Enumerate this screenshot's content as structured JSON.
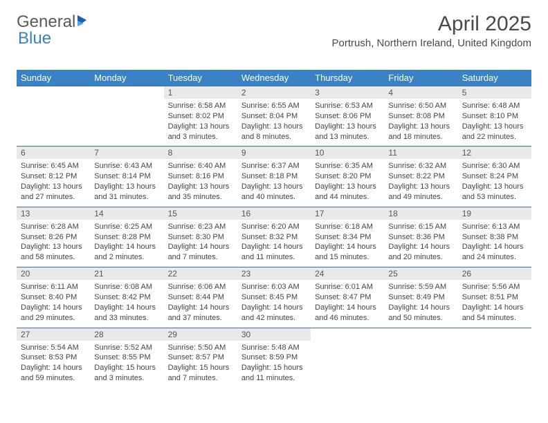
{
  "logo": {
    "text1": "General",
    "text2": "Blue"
  },
  "title": "April 2025",
  "location": "Portrush, Northern Ireland, United Kingdom",
  "header_bg": "#3b82c4",
  "header_fg": "#ffffff",
  "daynum_bg": "#e9e9e9",
  "border_color": "#3b6ea0",
  "weekdays": [
    "Sunday",
    "Monday",
    "Tuesday",
    "Wednesday",
    "Thursday",
    "Friday",
    "Saturday"
  ],
  "weeks": [
    {
      "nums": [
        "",
        "",
        "1",
        "2",
        "3",
        "4",
        "5"
      ],
      "cells": [
        null,
        null,
        {
          "sunrise": "6:58 AM",
          "sunset": "8:02 PM",
          "daylight": "13 hours and 3 minutes."
        },
        {
          "sunrise": "6:55 AM",
          "sunset": "8:04 PM",
          "daylight": "13 hours and 8 minutes."
        },
        {
          "sunrise": "6:53 AM",
          "sunset": "8:06 PM",
          "daylight": "13 hours and 13 minutes."
        },
        {
          "sunrise": "6:50 AM",
          "sunset": "8:08 PM",
          "daylight": "13 hours and 18 minutes."
        },
        {
          "sunrise": "6:48 AM",
          "sunset": "8:10 PM",
          "daylight": "13 hours and 22 minutes."
        }
      ]
    },
    {
      "nums": [
        "6",
        "7",
        "8",
        "9",
        "10",
        "11",
        "12"
      ],
      "cells": [
        {
          "sunrise": "6:45 AM",
          "sunset": "8:12 PM",
          "daylight": "13 hours and 27 minutes."
        },
        {
          "sunrise": "6:43 AM",
          "sunset": "8:14 PM",
          "daylight": "13 hours and 31 minutes."
        },
        {
          "sunrise": "6:40 AM",
          "sunset": "8:16 PM",
          "daylight": "13 hours and 35 minutes."
        },
        {
          "sunrise": "6:37 AM",
          "sunset": "8:18 PM",
          "daylight": "13 hours and 40 minutes."
        },
        {
          "sunrise": "6:35 AM",
          "sunset": "8:20 PM",
          "daylight": "13 hours and 44 minutes."
        },
        {
          "sunrise": "6:32 AM",
          "sunset": "8:22 PM",
          "daylight": "13 hours and 49 minutes."
        },
        {
          "sunrise": "6:30 AM",
          "sunset": "8:24 PM",
          "daylight": "13 hours and 53 minutes."
        }
      ]
    },
    {
      "nums": [
        "13",
        "14",
        "15",
        "16",
        "17",
        "18",
        "19"
      ],
      "cells": [
        {
          "sunrise": "6:28 AM",
          "sunset": "8:26 PM",
          "daylight": "13 hours and 58 minutes."
        },
        {
          "sunrise": "6:25 AM",
          "sunset": "8:28 PM",
          "daylight": "14 hours and 2 minutes."
        },
        {
          "sunrise": "6:23 AM",
          "sunset": "8:30 PM",
          "daylight": "14 hours and 7 minutes."
        },
        {
          "sunrise": "6:20 AM",
          "sunset": "8:32 PM",
          "daylight": "14 hours and 11 minutes."
        },
        {
          "sunrise": "6:18 AM",
          "sunset": "8:34 PM",
          "daylight": "14 hours and 15 minutes."
        },
        {
          "sunrise": "6:15 AM",
          "sunset": "8:36 PM",
          "daylight": "14 hours and 20 minutes."
        },
        {
          "sunrise": "6:13 AM",
          "sunset": "8:38 PM",
          "daylight": "14 hours and 24 minutes."
        }
      ]
    },
    {
      "nums": [
        "20",
        "21",
        "22",
        "23",
        "24",
        "25",
        "26"
      ],
      "cells": [
        {
          "sunrise": "6:11 AM",
          "sunset": "8:40 PM",
          "daylight": "14 hours and 29 minutes."
        },
        {
          "sunrise": "6:08 AM",
          "sunset": "8:42 PM",
          "daylight": "14 hours and 33 minutes."
        },
        {
          "sunrise": "6:06 AM",
          "sunset": "8:44 PM",
          "daylight": "14 hours and 37 minutes."
        },
        {
          "sunrise": "6:03 AM",
          "sunset": "8:45 PM",
          "daylight": "14 hours and 42 minutes."
        },
        {
          "sunrise": "6:01 AM",
          "sunset": "8:47 PM",
          "daylight": "14 hours and 46 minutes."
        },
        {
          "sunrise": "5:59 AM",
          "sunset": "8:49 PM",
          "daylight": "14 hours and 50 minutes."
        },
        {
          "sunrise": "5:56 AM",
          "sunset": "8:51 PM",
          "daylight": "14 hours and 54 minutes."
        }
      ]
    },
    {
      "nums": [
        "27",
        "28",
        "29",
        "30",
        "",
        "",
        ""
      ],
      "cells": [
        {
          "sunrise": "5:54 AM",
          "sunset": "8:53 PM",
          "daylight": "14 hours and 59 minutes."
        },
        {
          "sunrise": "5:52 AM",
          "sunset": "8:55 PM",
          "daylight": "15 hours and 3 minutes."
        },
        {
          "sunrise": "5:50 AM",
          "sunset": "8:57 PM",
          "daylight": "15 hours and 7 minutes."
        },
        {
          "sunrise": "5:48 AM",
          "sunset": "8:59 PM",
          "daylight": "15 hours and 11 minutes."
        },
        null,
        null,
        null
      ]
    }
  ]
}
